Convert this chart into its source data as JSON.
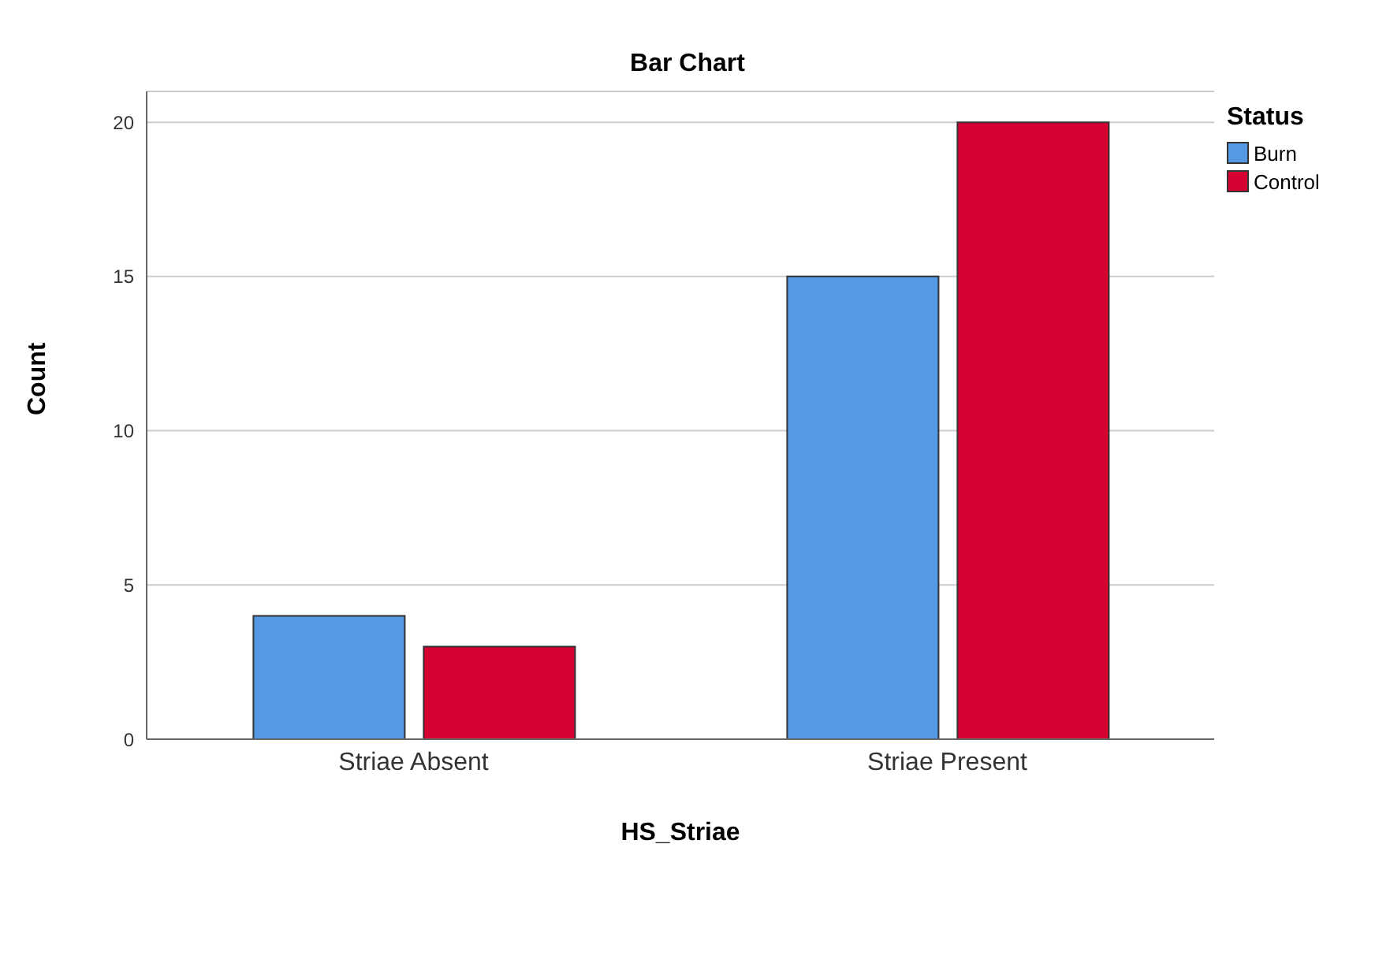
{
  "chart_data": {
    "type": "bar",
    "title": "Bar Chart",
    "xlabel": "HS_Striae",
    "ylabel": "Count",
    "legend_title": "Status",
    "categories": [
      "Striae Absent",
      "Striae Present"
    ],
    "series": [
      {
        "name": "Burn",
        "color": "#5599e5",
        "values": [
          4,
          15
        ]
      },
      {
        "name": "Control",
        "color": "#d60032",
        "values": [
          3,
          20
        ]
      }
    ],
    "ylim": [
      0,
      21
    ],
    "yticks": [
      0,
      5,
      10,
      15,
      20
    ],
    "grid": "y",
    "legend": "top right"
  }
}
